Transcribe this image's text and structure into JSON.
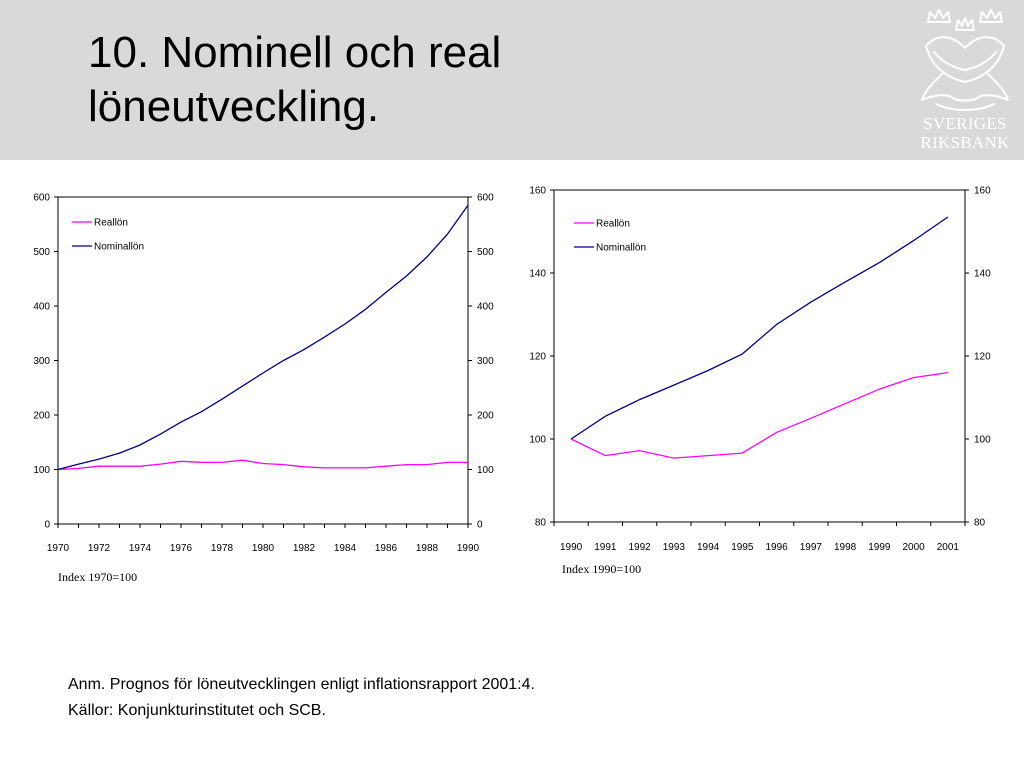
{
  "slide": {
    "title_line1": "10. Nominell och real",
    "title_line2": "löneutveckling."
  },
  "logo": {
    "name_line1": "SVERIGES",
    "name_line2": "RIKSBANK"
  },
  "notes": {
    "line1": "Anm. Prognos för löneutvecklingen enligt inflationsrapport 2001:4.",
    "line2": "Källor: Konjunkturinstitutet och SCB."
  },
  "colors": {
    "header_bg": "#d9d9d9",
    "reallon": "#ff00ff",
    "nominallon": "#000080"
  },
  "chart_data": [
    {
      "type": "line",
      "index_note": "Index 1970=100",
      "x": [
        1970,
        1971,
        1972,
        1973,
        1974,
        1975,
        1976,
        1977,
        1978,
        1979,
        1980,
        1981,
        1982,
        1983,
        1984,
        1985,
        1986,
        1987,
        1988,
        1989,
        1990
      ],
      "x_tick_labels": [
        "1970",
        "1972",
        "1974",
        "1976",
        "1978",
        "1980",
        "1982",
        "1984",
        "1986",
        "1988",
        "1990"
      ],
      "ylim": [
        0,
        600
      ],
      "y_ticks": [
        0,
        100,
        200,
        300,
        400,
        500,
        600
      ],
      "y_tick_labels": [
        "0",
        "100",
        "200",
        "300",
        "400",
        "500",
        "600"
      ],
      "secondary_y_tick_labels": [
        "0",
        "100",
        "200",
        "300",
        "400",
        "500",
        "600"
      ],
      "grid": false,
      "legend_position": "top-left",
      "series": [
        {
          "name": "Reallön",
          "color": "#ff00ff",
          "values": [
            100,
            102,
            106,
            106,
            106,
            110,
            115,
            113,
            113,
            117,
            111,
            109,
            105,
            103,
            103,
            103,
            106,
            109,
            109,
            113,
            113
          ]
        },
        {
          "name": "Nominallön",
          "color": "#000080",
          "values": [
            100,
            110,
            119,
            130,
            145,
            165,
            187,
            206,
            229,
            253,
            277,
            300,
            320,
            343,
            367,
            394,
            425,
            455,
            490,
            532,
            585
          ]
        }
      ]
    },
    {
      "type": "line",
      "index_note": "Index 1990=100",
      "x": [
        1990,
        1991,
        1992,
        1993,
        1994,
        1995,
        1996,
        1997,
        1998,
        1999,
        2000,
        2001
      ],
      "x_tick_labels": [
        "1990",
        "1991",
        "1992",
        "1993",
        "1994",
        "1995",
        "1996",
        "1997",
        "1998",
        "1999",
        "2000",
        "2001"
      ],
      "ylim": [
        80,
        160
      ],
      "y_ticks": [
        80,
        100,
        120,
        140,
        160
      ],
      "y_tick_labels": [
        "80",
        "100",
        "120",
        "140",
        "160"
      ],
      "secondary_y_tick_labels": [
        "80",
        "100",
        "120",
        "140",
        "160"
      ],
      "grid": false,
      "legend_position": "top-left",
      "series": [
        {
          "name": "Reallön",
          "color": "#ff00ff",
          "values": [
            100,
            96,
            97.2,
            95.4,
            96,
            96.6,
            101.6,
            105,
            108.5,
            112,
            114.8,
            116
          ]
        },
        {
          "name": "Nominallön",
          "color": "#000080",
          "values": [
            100,
            105.5,
            109.5,
            113,
            116.5,
            120.5,
            127.6,
            133,
            137.8,
            142.5,
            147.8,
            153.5
          ]
        }
      ]
    }
  ]
}
